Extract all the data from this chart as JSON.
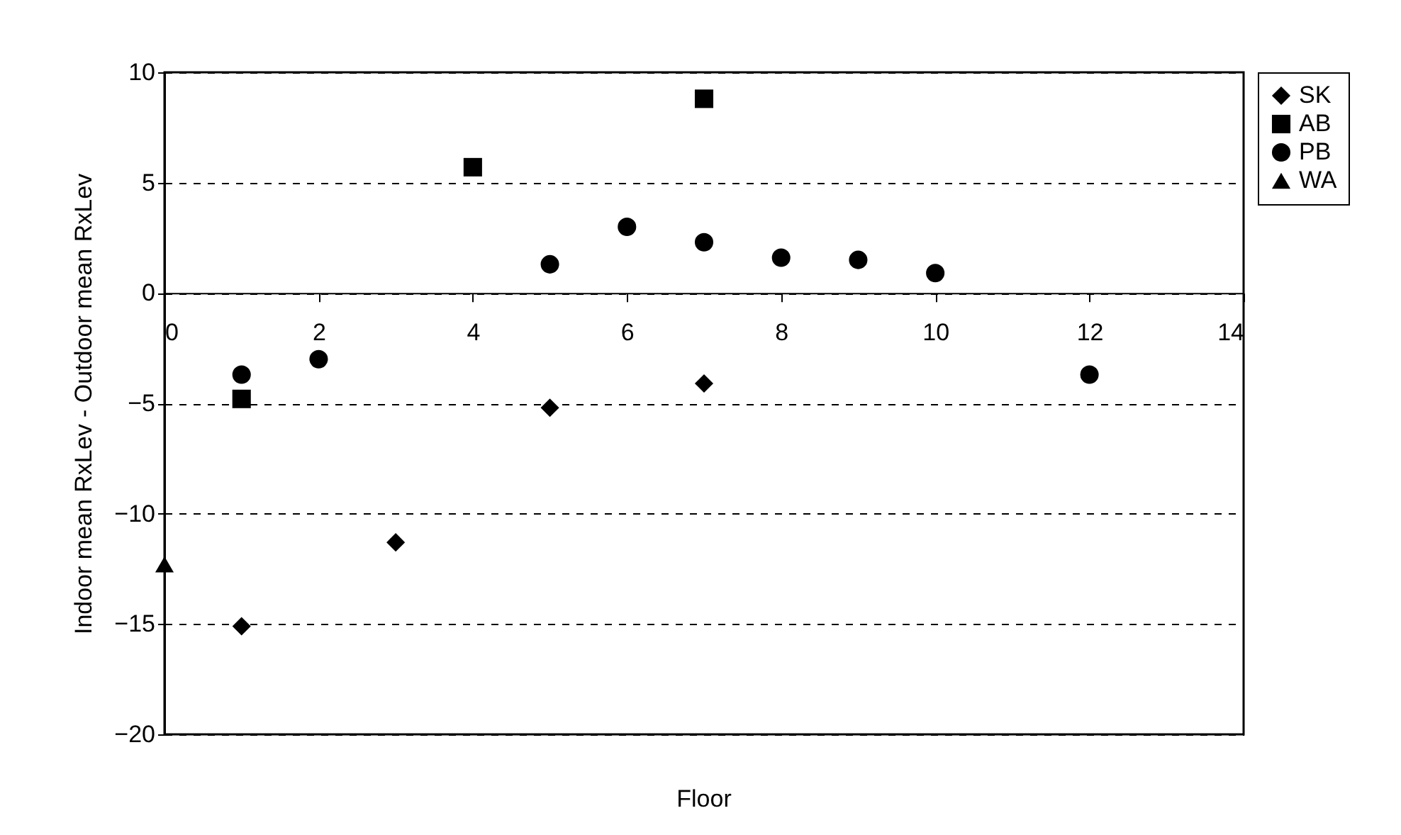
{
  "chart_data": {
    "type": "scatter",
    "xlabel": "Floor",
    "ylabel": "Indoor mean RxLev - Outdoor mean RxLev",
    "xlim": [
      0,
      14
    ],
    "xticks": [
      0,
      2,
      4,
      6,
      8,
      10,
      12,
      14
    ],
    "ylim": [
      -20,
      10
    ],
    "yticks": [
      -20,
      -15,
      -10,
      -5,
      0,
      5,
      10
    ],
    "grid": "y",
    "legend": "right",
    "series": [
      {
        "name": "SK",
        "color": "#000000",
        "marker": "diamond",
        "x": [
          1,
          3,
          5,
          7
        ],
        "values": [
          -15.1,
          -11.3,
          -5.2,
          -4.1
        ]
      },
      {
        "name": "AB",
        "color": "#000000",
        "marker": "square",
        "x": [
          1,
          4,
          7
        ],
        "values": [
          -4.8,
          5.7,
          8.8
        ]
      },
      {
        "name": "PB",
        "color": "#000000",
        "marker": "circle",
        "x": [
          1,
          2,
          5,
          6,
          7,
          8,
          9,
          10,
          12
        ],
        "values": [
          -3.7,
          -3.0,
          1.3,
          3.0,
          2.3,
          1.6,
          1.5,
          0.9,
          -3.7
        ]
      },
      {
        "name": "WA",
        "color": "#000000",
        "marker": "triangle",
        "x": [
          0
        ],
        "values": [
          -12.3
        ]
      }
    ]
  }
}
